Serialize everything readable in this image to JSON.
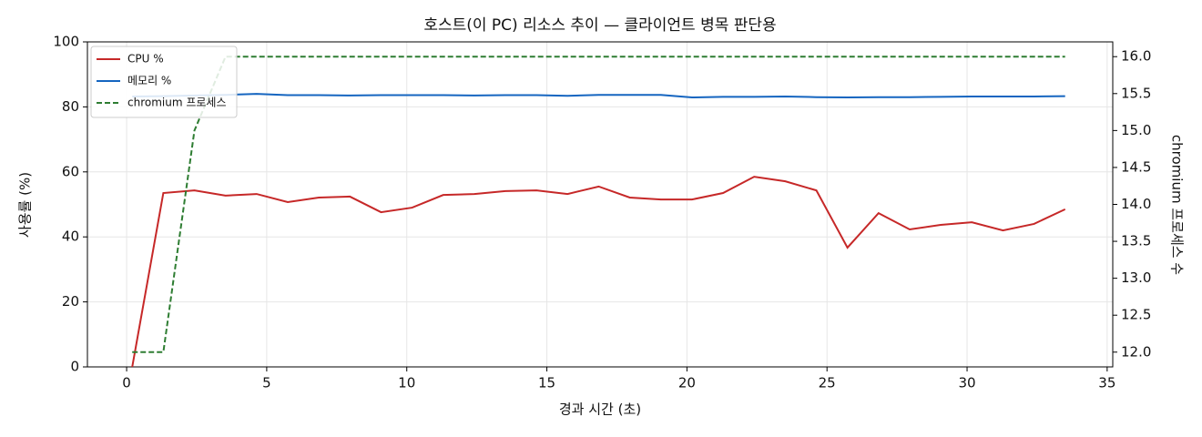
{
  "chart_data": {
    "type": "line",
    "title": "호스트(이 PC) 리소스 추이 — 클라이언트 병목 판단용",
    "xlabel": "경과 시간 (초)",
    "ylabel": "사용률 (%)",
    "y2label": "chromium 프로세스 수",
    "x": [
      0.2,
      1.31,
      2.42,
      3.53,
      4.64,
      5.75,
      6.86,
      7.97,
      9.08,
      10.19,
      11.3,
      12.41,
      13.52,
      14.63,
      15.74,
      16.85,
      17.96,
      19.07,
      20.18,
      21.29,
      22.4,
      23.51,
      24.62,
      25.73,
      26.84,
      27.95,
      29.06,
      30.17,
      31.28,
      32.39,
      33.5
    ],
    "series": [
      {
        "name": "CPU %",
        "color": "#c62828",
        "linestyle": "solid",
        "axis": "y",
        "values": [
          0,
          53.5,
          54.3,
          52.7,
          53.2,
          50.7,
          52.1,
          52.4,
          47.6,
          49.0,
          52.9,
          53.2,
          54.1,
          54.3,
          53.2,
          55.5,
          52.1,
          51.5,
          51.5,
          53.5,
          58.5,
          57.1,
          54.3,
          36.7,
          47.3,
          42.3,
          43.7,
          44.5,
          42.0,
          44.0,
          48.5
        ]
      },
      {
        "name": "메모리 %",
        "color": "#1565c0",
        "linestyle": "solid",
        "axis": "y",
        "values": [
          83.2,
          83.3,
          83.5,
          83.7,
          84.0,
          83.6,
          83.6,
          83.5,
          83.6,
          83.6,
          83.6,
          83.5,
          83.6,
          83.6,
          83.4,
          83.7,
          83.7,
          83.7,
          82.9,
          83.1,
          83.1,
          83.2,
          83.0,
          82.9,
          83.0,
          83.0,
          83.1,
          83.2,
          83.2,
          83.2,
          83.3
        ]
      },
      {
        "name": "chromium 프로세스",
        "color": "#2e7d32",
        "linestyle": "dashed",
        "axis": "y2",
        "values": [
          12,
          12,
          15,
          16,
          16,
          16,
          16,
          16,
          16,
          16,
          16,
          16,
          16,
          16,
          16,
          16,
          16,
          16,
          16,
          16,
          16,
          16,
          16,
          16,
          16,
          16,
          16,
          16,
          16,
          16,
          16
        ]
      }
    ],
    "xlim": [
      -1.4,
      35.2
    ],
    "xticks": [
      0,
      5,
      10,
      15,
      20,
      25,
      30,
      35
    ],
    "ylim": [
      0,
      100
    ],
    "yticks": [
      0,
      20,
      40,
      60,
      80,
      100
    ],
    "y2lim": [
      11.8,
      16.2
    ],
    "y2ticks": [
      {
        "value": 12,
        "label": "12.0"
      },
      12.5,
      {
        "value": 13,
        "label": "13.0"
      },
      13.5,
      {
        "value": 14,
        "label": "14.0"
      },
      14.5,
      {
        "value": 15,
        "label": "15.0"
      },
      15.5,
      {
        "value": 16,
        "label": "16.0"
      }
    ],
    "grid": true,
    "legend": "upper left"
  }
}
